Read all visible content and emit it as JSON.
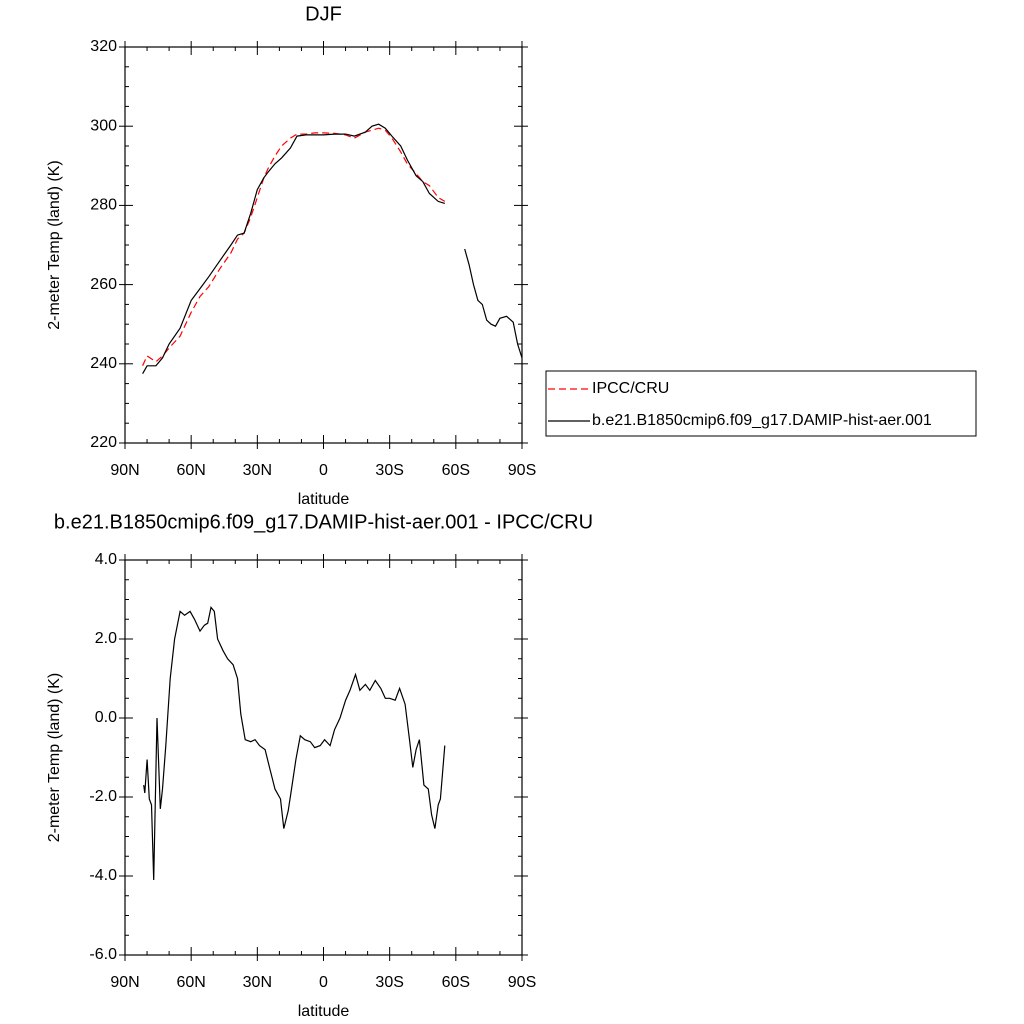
{
  "chart_data": [
    {
      "type": "line",
      "title": "DJF",
      "x_label": "latitude",
      "y_label": "2-meter Temp (land) (K)",
      "x": [
        82,
        80,
        76,
        73,
        70,
        65,
        60,
        56,
        52,
        47,
        42,
        39,
        36,
        33,
        30,
        27,
        25,
        22,
        19,
        15,
        12,
        8,
        4,
        0,
        -5,
        -10,
        -14,
        -19,
        -22,
        -25,
        -28,
        -31,
        -35,
        -38,
        -42,
        -45,
        -48,
        -52,
        -55,
        -60,
        -64,
        -66,
        -68,
        -70,
        -72,
        -74,
        -76,
        -78,
        -80,
        -83,
        -86,
        -88,
        -90
      ],
      "series": [
        {
          "name": "IPCC/CRU",
          "color": "#ff0000",
          "dash": "dashed",
          "values": [
            239.5,
            242,
            240.5,
            242,
            244,
            247,
            253,
            257,
            259.5,
            264,
            268,
            271.5,
            273,
            277,
            282,
            287,
            289.5,
            292.5,
            295,
            297,
            298,
            298,
            298.3,
            298.3,
            298.2,
            297.8,
            297,
            298.5,
            299,
            299.5,
            299,
            297,
            293.5,
            290.5,
            288,
            286,
            285,
            282,
            281,
            null,
            null,
            null,
            null,
            null,
            null,
            null,
            null,
            null,
            null,
            null,
            null,
            null,
            null
          ]
        },
        {
          "name": "b.e21.B1850cmip6.f09_g17.DAMIP-hist-aer.001",
          "color": "#000000",
          "values": [
            237.5,
            239.5,
            239.5,
            241.5,
            245,
            249,
            256,
            259,
            262,
            266,
            270,
            272.5,
            273,
            278,
            284,
            287,
            288.5,
            290.5,
            292,
            294.5,
            297.5,
            297.8,
            297.8,
            297.8,
            298,
            298,
            297.5,
            298.5,
            300,
            300.5,
            299.5,
            297.5,
            295,
            291.5,
            287.5,
            286,
            283,
            281,
            280.5,
            null,
            269,
            265,
            260,
            256,
            255,
            251,
            250,
            249.5,
            251.5,
            252,
            250.5,
            245,
            241.5
          ]
        }
      ],
      "xlim": [
        90,
        -90
      ],
      "xticks": [
        {
          "value": 90,
          "label": "90N"
        },
        {
          "value": 60,
          "label": "60N"
        },
        {
          "value": 30,
          "label": "30N"
        },
        0,
        {
          "value": -30,
          "label": "30S"
        },
        {
          "value": -60,
          "label": "60S"
        },
        {
          "value": -90,
          "label": "90S"
        }
      ],
      "ylim": [
        220,
        320
      ],
      "yticks": [
        220,
        240,
        260,
        280,
        300,
        320
      ],
      "legend": "right"
    },
    {
      "type": "line",
      "title": "b.e21.B1850cmip6.f09_g17.DAMIP-hist-aer.001 - IPCC/CRU",
      "x_label": "latitude",
      "y_label": "2-meter Temp (land) (K)",
      "x": [
        81.5,
        81,
        80,
        79,
        78,
        77,
        75.5,
        74,
        73,
        71.5,
        69.5,
        67.5,
        65,
        63,
        60.5,
        58.5,
        56,
        54,
        52.5,
        51,
        49.5,
        48,
        45.5,
        43.5,
        41,
        39,
        37.5,
        35.5,
        33,
        31,
        29,
        26.5,
        24.5,
        22,
        19.5,
        18,
        16,
        14.5,
        12.5,
        10.5,
        8.5,
        6,
        4,
        1.5,
        -0.5,
        -3,
        -5,
        -7.5,
        -10,
        -12,
        -14.5,
        -16.5,
        -19,
        -21,
        -23.5,
        -26,
        -28,
        -30,
        -32.5,
        -34.5,
        -37,
        -39,
        -40.5,
        -42,
        -43.5,
        -45.5,
        -47.5,
        -49,
        -50.5,
        -52,
        -53,
        -55
      ],
      "values": [
        -1.7,
        -1.9,
        -1.05,
        -2.05,
        -2.2,
        -4.1,
        0,
        -2.3,
        -1.8,
        -0.7,
        1.0,
        2.0,
        2.7,
        2.6,
        2.7,
        2.5,
        2.2,
        2.35,
        2.4,
        2.8,
        2.7,
        2.0,
        1.7,
        1.5,
        1.35,
        1.0,
        0.1,
        -0.55,
        -0.6,
        -0.55,
        -0.7,
        -0.8,
        -1.25,
        -1.8,
        -2.05,
        -2.8,
        -2.35,
        -1.8,
        -1.05,
        -0.45,
        -0.55,
        -0.6,
        -0.75,
        -0.7,
        -0.55,
        -0.7,
        -0.3,
        0,
        0.45,
        0.7,
        1.1,
        0.7,
        0.85,
        0.7,
        0.95,
        0.75,
        0.5,
        0.5,
        0.45,
        0.75,
        0.35,
        -0.55,
        -1.25,
        -0.8,
        -0.55,
        -1.7,
        -1.8,
        -2.45,
        -2.8,
        -2.2,
        -2.05,
        -0.7
      ],
      "color": "#000000",
      "xlim": [
        90,
        -90
      ],
      "xticks": [
        {
          "value": 90,
          "label": "90N"
        },
        {
          "value": 60,
          "label": "60N"
        },
        {
          "value": 30,
          "label": "30N"
        },
        0,
        {
          "value": -30,
          "label": "30S"
        },
        {
          "value": -60,
          "label": "60S"
        },
        {
          "value": -90,
          "label": "90S"
        }
      ],
      "ylim": [
        -6,
        4
      ],
      "yticks": [
        {
          "value": -6,
          "label": "-6.0"
        },
        {
          "value": -4,
          "label": "-4.0"
        },
        {
          "value": -2,
          "label": "-2.0"
        },
        {
          "value": 0,
          "label": "0.0"
        },
        {
          "value": 2,
          "label": "2.0"
        },
        {
          "value": 4,
          "label": "4.0"
        }
      ]
    }
  ]
}
